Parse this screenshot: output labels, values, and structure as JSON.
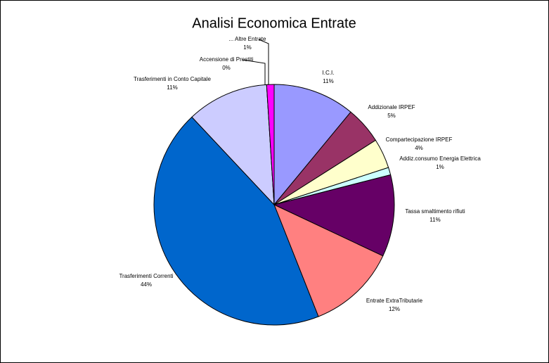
{
  "chart_data": {
    "type": "pie",
    "title": "Analisi Economica Entrate",
    "categories": [
      "I.C.I.",
      "Addizionale IRPEF",
      "Compartecipazione IRPEF",
      "Addiz.consumo Energia Elettrica",
      "Tassa smaltimento rifiuti",
      "Entrate ExtraTributarie",
      "Trasferimenti Correnti",
      "Trasferimenti in Conto Capitale",
      "Accensione di Prestiti",
      "... Altre Entrate"
    ],
    "values": [
      11,
      5,
      4,
      1,
      11,
      12,
      44,
      11,
      0,
      1
    ],
    "value_labels": [
      "11%",
      "5%",
      "4%",
      "1%",
      "11%",
      "12%",
      "44%",
      "11%",
      "0%",
      "1%"
    ],
    "colors": [
      "#9999ff",
      "#993366",
      "#ffffcc",
      "#ccffff",
      "#660066",
      "#ff8080",
      "#0066cc",
      "#ccccff",
      "#000080",
      "#ff00ff"
    ]
  }
}
